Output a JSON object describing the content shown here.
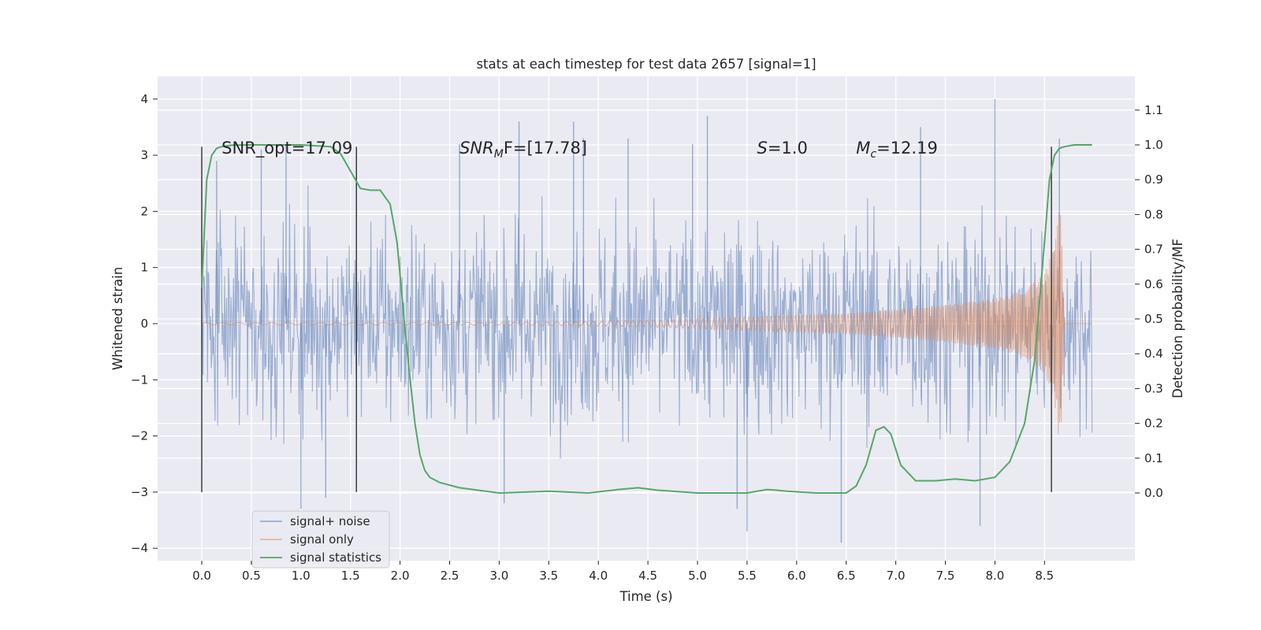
{
  "chart_data": {
    "type": "line",
    "title": "stats at each timestep for test data 2657 [signal=1]",
    "xlabel": "Time (s)",
    "ylabel": "Whitened strain",
    "y2label": "Detection probability/MF",
    "xlim": [
      -0.44,
      9.4
    ],
    "ylim": [
      -4.2,
      4.4
    ],
    "y2lim": [
      -0.2,
      1.2
    ],
    "x_ticks": [
      0.0,
      0.5,
      1.0,
      1.5,
      2.0,
      2.5,
      3.0,
      3.5,
      4.0,
      4.5,
      5.0,
      5.5,
      6.0,
      6.5,
      7.0,
      7.5,
      8.0,
      8.5
    ],
    "x_tick_labels": [
      "0.0",
      "0.5",
      "1.0",
      "1.5",
      "2.0",
      "2.5",
      "3.0",
      "3.5",
      "4.0",
      "4.5",
      "5.0",
      "5.5",
      "6.0",
      "6.5",
      "7.0",
      "7.5",
      "8.0",
      "8.5"
    ],
    "y_ticks": [
      -4,
      -3,
      -2,
      -1,
      0,
      1,
      2,
      3,
      4
    ],
    "y_tick_labels": [
      "−4",
      "−3",
      "−2",
      "−1",
      "0",
      "1",
      "2",
      "3",
      "4"
    ],
    "y2_ticks": [
      0.0,
      0.1,
      0.2,
      0.3,
      0.4,
      0.5,
      0.6,
      0.7,
      0.8,
      0.9,
      1.0,
      1.1
    ],
    "y2_tick_labels": [
      "0.0",
      "0.1",
      "0.2",
      "0.3",
      "0.4",
      "0.5",
      "0.6",
      "0.7",
      "0.8",
      "0.9",
      "1.0",
      "1.1"
    ],
    "grid": true,
    "legend_position": "lower-left",
    "series": [
      {
        "name": "signal+ noise",
        "color": "#4c72b0",
        "axis": "left",
        "x_range": [
          0.0,
          8.98
        ],
        "approx_envelope": [
          -3.2,
          3.7
        ],
        "note_values": "dense noise trace; visible extreme peaks listed",
        "peaks_x": [
          0.15,
          0.6,
          0.85,
          1.0,
          1.25,
          2.6,
          3.05,
          3.2,
          3.75,
          3.85,
          4.3,
          4.95,
          5.1,
          5.4,
          5.5,
          6.45,
          7.25,
          7.85,
          8.0,
          8.65
        ],
        "peaks_y": [
          2.9,
          3.1,
          3.2,
          -3.3,
          -3.1,
          3.2,
          -3.2,
          3.6,
          3.6,
          3.3,
          3.3,
          3.2,
          3.7,
          -3.3,
          -3.7,
          -3.9,
          3.5,
          -3.6,
          4.0,
          3.3
        ]
      },
      {
        "name": "signal only",
        "color": "#dd8452",
        "axis": "left",
        "x": [
          0.0,
          2.0,
          3.5,
          4.5,
          5.5,
          6.5,
          7.0,
          7.5,
          8.0,
          8.3,
          8.5,
          8.6,
          8.66,
          8.7,
          8.98
        ],
        "amplitude": [
          0.02,
          0.02,
          0.03,
          0.06,
          0.12,
          0.18,
          0.25,
          0.33,
          0.45,
          0.6,
          0.9,
          1.4,
          2.3,
          0.05,
          0.05
        ]
      },
      {
        "name": "signal statistics",
        "color": "#55a868",
        "axis": "right",
        "x": [
          0.0,
          0.05,
          0.1,
          0.15,
          0.2,
          0.3,
          0.5,
          1.0,
          1.3,
          1.4,
          1.5,
          1.6,
          1.7,
          1.8,
          1.9,
          1.97,
          2.05,
          2.1,
          2.15,
          2.2,
          2.25,
          2.3,
          2.4,
          2.6,
          3.0,
          3.5,
          3.9,
          4.2,
          4.4,
          4.6,
          5.0,
          5.5,
          5.7,
          5.8,
          5.9,
          6.2,
          6.5,
          6.6,
          6.7,
          6.8,
          6.88,
          6.95,
          7.05,
          7.2,
          7.4,
          7.6,
          7.8,
          8.0,
          8.15,
          8.3,
          8.4,
          8.5,
          8.55,
          8.6,
          8.65,
          8.7,
          8.8,
          8.9,
          8.98
        ],
        "values": [
          0.59,
          0.9,
          0.97,
          0.99,
          0.995,
          0.999,
          1.0,
          1.0,
          0.995,
          0.975,
          0.925,
          0.875,
          0.87,
          0.87,
          0.83,
          0.72,
          0.47,
          0.33,
          0.2,
          0.11,
          0.065,
          0.045,
          0.03,
          0.015,
          0.0,
          0.005,
          0.0,
          0.01,
          0.015,
          0.008,
          0.0,
          0.0,
          0.01,
          0.008,
          0.005,
          0.0,
          0.0,
          0.02,
          0.08,
          0.18,
          0.19,
          0.17,
          0.08,
          0.035,
          0.035,
          0.04,
          0.035,
          0.045,
          0.09,
          0.2,
          0.38,
          0.72,
          0.9,
          0.97,
          0.99,
          0.995,
          1.0,
          1.0,
          1.0
        ]
      }
    ],
    "vlines": {
      "color": "#3c3c3c",
      "x": [
        0.0,
        1.56,
        8.57
      ],
      "y_range": [
        -3.0,
        3.15
      ]
    },
    "annotations": [
      {
        "text": "SNR_opt=17.09",
        "x": 0.2,
        "y": 3.2
      },
      {
        "text_main": "SNR",
        "text_sub": "M",
        "text_rest": "F=[17.78]",
        "x": 2.6,
        "y": 3.2
      },
      {
        "text_main": "S",
        "text_rest": "=1.0",
        "x": 5.6,
        "y": 3.2
      },
      {
        "text_main": "M",
        "text_sub": "c",
        "text_rest": "=12.19",
        "x": 6.6,
        "y": 3.2
      }
    ]
  }
}
